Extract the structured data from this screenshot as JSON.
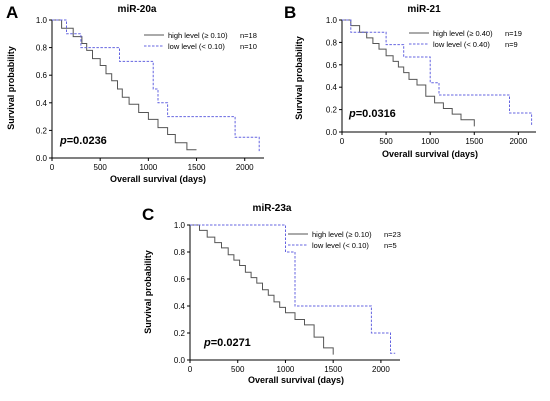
{
  "chart_data": [
    {
      "type": "line",
      "panel": "A",
      "title": "miR-20a",
      "xlabel": "Overall survival (days)",
      "ylabel": "Survival probability",
      "xlim": [
        0,
        2200
      ],
      "ylim": [
        0,
        1.0
      ],
      "x_ticks": [
        "0",
        "500",
        "1000",
        "1500",
        "2000"
      ],
      "y_ticks": [
        "0.0",
        "0.2",
        "0.4",
        "0.6",
        "0.8",
        "1.0"
      ],
      "p_prefix": "p",
      "p_rest": "=0.0236",
      "series": [
        {
          "name": "high level (≥ 0.10)",
          "n_label": "n=18",
          "style": "solid",
          "color": "#555555",
          "x": [
            0,
            100,
            220,
            310,
            360,
            420,
            500,
            560,
            620,
            680,
            730,
            800,
            900,
            1000,
            1100,
            1200,
            1280,
            1400,
            1500
          ],
          "y": [
            1.0,
            0.94,
            0.88,
            0.83,
            0.78,
            0.72,
            0.67,
            0.61,
            0.56,
            0.5,
            0.44,
            0.39,
            0.33,
            0.28,
            0.22,
            0.17,
            0.11,
            0.06,
            0.06
          ]
        },
        {
          "name": "low level  (< 0.10)",
          "n_label": "n=10",
          "style": "dashed",
          "color": "#6464e0",
          "x": [
            0,
            150,
            300,
            450,
            600,
            700,
            1050,
            1100,
            1200,
            1900,
            2150
          ],
          "y": [
            1.0,
            0.9,
            0.8,
            0.8,
            0.8,
            0.7,
            0.5,
            0.4,
            0.3,
            0.15,
            0.05
          ]
        }
      ]
    },
    {
      "type": "line",
      "panel": "B",
      "title": "miR-21",
      "xlabel": "Overall survival (days)",
      "ylabel": "Survival probability",
      "xlim": [
        0,
        2200
      ],
      "ylim": [
        0,
        1.0
      ],
      "x_ticks": [
        "0",
        "500",
        "1000",
        "1500",
        "2000"
      ],
      "y_ticks": [
        "0.0",
        "0.2",
        "0.4",
        "0.6",
        "0.8",
        "1.0"
      ],
      "p_prefix": "p",
      "p_rest": "=0.0316",
      "series": [
        {
          "name": "high level (≥ 0.40)",
          "n_label": "n=19",
          "style": "solid",
          "color": "#555555",
          "x": [
            0,
            100,
            200,
            280,
            350,
            420,
            500,
            580,
            640,
            700,
            760,
            850,
            950,
            1050,
            1150,
            1250,
            1350,
            1500
          ],
          "y": [
            1.0,
            0.95,
            0.89,
            0.84,
            0.79,
            0.74,
            0.68,
            0.63,
            0.58,
            0.53,
            0.47,
            0.42,
            0.32,
            0.26,
            0.21,
            0.16,
            0.11,
            0.05
          ]
        },
        {
          "name": "low level   (< 0.40)",
          "n_label": "n=9",
          "style": "dashed",
          "color": "#6464e0",
          "x": [
            0,
            100,
            300,
            500,
            700,
            1000,
            1100,
            1900,
            2150
          ],
          "y": [
            1.0,
            0.89,
            0.89,
            0.78,
            0.67,
            0.44,
            0.33,
            0.17,
            0.05
          ]
        }
      ]
    },
    {
      "type": "line",
      "panel": "C",
      "title": "miR-23a",
      "xlabel": "Overall survival (days)",
      "ylabel": "Survival probability",
      "xlim": [
        0,
        2200
      ],
      "ylim": [
        0,
        1.0
      ],
      "x_ticks": [
        "0",
        "500",
        "1000",
        "1500",
        "2000"
      ],
      "y_ticks": [
        "0.0",
        "0.2",
        "0.4",
        "0.6",
        "0.8",
        "1.0"
      ],
      "p_prefix": "p",
      "p_rest": "=0.0271",
      "series": [
        {
          "name": "high level (≥ 0.10)",
          "n_label": "n=23",
          "style": "solid",
          "color": "#555555",
          "x": [
            0,
            100,
            180,
            260,
            330,
            400,
            460,
            520,
            580,
            640,
            700,
            760,
            820,
            880,
            940,
            1000,
            1100,
            1200,
            1300,
            1400,
            1500
          ],
          "y": [
            1.0,
            0.96,
            0.91,
            0.87,
            0.83,
            0.78,
            0.74,
            0.7,
            0.65,
            0.61,
            0.57,
            0.52,
            0.48,
            0.43,
            0.39,
            0.35,
            0.3,
            0.26,
            0.17,
            0.09,
            0.04
          ]
        },
        {
          "name": "low level  (< 0.10)",
          "n_label": "n=5",
          "style": "dashed",
          "color": "#6464e0",
          "x": [
            0,
            1000,
            1100,
            1900,
            2100,
            2150
          ],
          "y": [
            1.0,
            0.8,
            0.4,
            0.2,
            0.05,
            0.05
          ]
        }
      ]
    }
  ]
}
